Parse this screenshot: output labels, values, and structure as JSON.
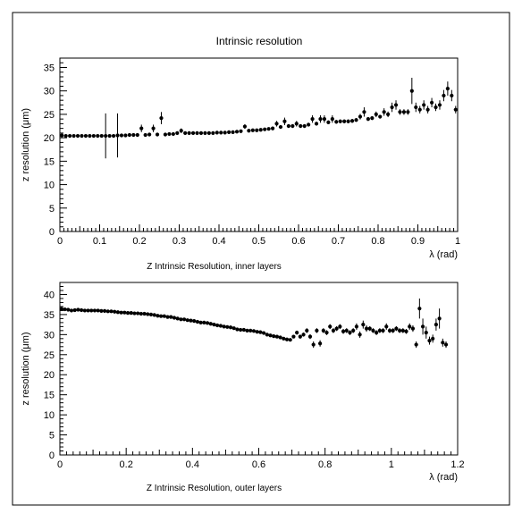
{
  "title": "Intrinsic resolution",
  "chart_data": [
    {
      "type": "scatter",
      "caption": "Z Intrinsic Resolution, inner layers",
      "xlabel": "λ (rad)",
      "ylabel": "z resolution (μm)",
      "xlim": [
        0,
        1
      ],
      "ylim": [
        0,
        37
      ],
      "xticks": [
        0,
        0.1,
        0.2,
        0.3,
        0.4,
        0.5,
        0.6,
        0.7,
        0.8,
        0.9,
        1
      ],
      "xtick_labels": [
        "0",
        "0.1",
        "0.2",
        "0.3",
        "0.4",
        "0.5",
        "0.6",
        "0.7",
        "0.8",
        "0.9",
        "1"
      ],
      "yticks": [
        0,
        5,
        10,
        15,
        20,
        25,
        30,
        35
      ],
      "ytick_labels": [
        "0",
        "5",
        "10",
        "15",
        "20",
        "25",
        "30",
        "35"
      ],
      "grid": false,
      "points": [
        [
          0.005,
          20.5,
          0.3
        ],
        [
          0.015,
          20.4,
          0.3
        ],
        [
          0.025,
          20.4,
          0.3
        ],
        [
          0.035,
          20.4,
          0.3
        ],
        [
          0.045,
          20.4,
          0.3
        ],
        [
          0.055,
          20.4,
          0.3
        ],
        [
          0.065,
          20.4,
          0.3
        ],
        [
          0.075,
          20.4,
          0.3
        ],
        [
          0.085,
          20.4,
          0.3
        ],
        [
          0.095,
          20.4,
          0.3
        ],
        [
          0.105,
          20.4,
          0.3
        ],
        [
          0.115,
          20.4,
          4.8
        ],
        [
          0.125,
          20.4,
          0.3
        ],
        [
          0.135,
          20.4,
          0.3
        ],
        [
          0.145,
          20.5,
          4.7
        ],
        [
          0.155,
          20.5,
          0.3
        ],
        [
          0.165,
          20.5,
          0.3
        ],
        [
          0.175,
          20.6,
          0.3
        ],
        [
          0.185,
          20.6,
          0.3
        ],
        [
          0.195,
          20.6,
          0.3
        ],
        [
          0.205,
          22.0,
          0.8
        ],
        [
          0.215,
          20.6,
          0.3
        ],
        [
          0.225,
          20.7,
          0.3
        ],
        [
          0.235,
          22.0,
          0.8
        ],
        [
          0.245,
          20.7,
          0.3
        ],
        [
          0.255,
          24.2,
          1.3
        ],
        [
          0.265,
          20.7,
          0.3
        ],
        [
          0.275,
          20.8,
          0.3
        ],
        [
          0.285,
          20.8,
          0.3
        ],
        [
          0.295,
          21.0,
          0.3
        ],
        [
          0.305,
          21.5,
          0.5
        ],
        [
          0.315,
          21.0,
          0.3
        ],
        [
          0.325,
          21.0,
          0.3
        ],
        [
          0.335,
          21.0,
          0.3
        ],
        [
          0.345,
          21.0,
          0.3
        ],
        [
          0.355,
          21.0,
          0.3
        ],
        [
          0.365,
          21.0,
          0.3
        ],
        [
          0.375,
          21.0,
          0.3
        ],
        [
          0.385,
          21.0,
          0.3
        ],
        [
          0.395,
          21.1,
          0.3
        ],
        [
          0.405,
          21.1,
          0.3
        ],
        [
          0.415,
          21.1,
          0.3
        ],
        [
          0.425,
          21.2,
          0.3
        ],
        [
          0.435,
          21.2,
          0.3
        ],
        [
          0.445,
          21.3,
          0.3
        ],
        [
          0.455,
          21.4,
          0.3
        ],
        [
          0.465,
          22.4,
          0.5
        ],
        [
          0.475,
          21.5,
          0.3
        ],
        [
          0.485,
          21.6,
          0.3
        ],
        [
          0.495,
          21.6,
          0.3
        ],
        [
          0.505,
          21.7,
          0.3
        ],
        [
          0.515,
          21.8,
          0.3
        ],
        [
          0.525,
          21.9,
          0.3
        ],
        [
          0.535,
          22.0,
          0.4
        ],
        [
          0.545,
          23.0,
          0.6
        ],
        [
          0.555,
          22.3,
          0.4
        ],
        [
          0.565,
          23.5,
          0.8
        ],
        [
          0.575,
          22.5,
          0.4
        ],
        [
          0.585,
          22.5,
          0.4
        ],
        [
          0.595,
          23.0,
          0.6
        ],
        [
          0.605,
          22.5,
          0.4
        ],
        [
          0.615,
          22.5,
          0.4
        ],
        [
          0.625,
          22.8,
          0.4
        ],
        [
          0.635,
          24.0,
          0.8
        ],
        [
          0.645,
          23.0,
          0.4
        ],
        [
          0.655,
          24.0,
          0.8
        ],
        [
          0.665,
          24.0,
          0.8
        ],
        [
          0.675,
          23.3,
          0.4
        ],
        [
          0.685,
          24.0,
          0.8
        ],
        [
          0.695,
          23.4,
          0.4
        ],
        [
          0.705,
          23.5,
          0.4
        ],
        [
          0.715,
          23.5,
          0.4
        ],
        [
          0.725,
          23.5,
          0.4
        ],
        [
          0.735,
          23.6,
          0.4
        ],
        [
          0.745,
          23.8,
          0.4
        ],
        [
          0.755,
          24.5,
          0.6
        ],
        [
          0.765,
          25.5,
          1.0
        ],
        [
          0.775,
          24.0,
          0.4
        ],
        [
          0.785,
          24.2,
          0.4
        ],
        [
          0.795,
          25.0,
          0.6
        ],
        [
          0.805,
          24.5,
          0.4
        ],
        [
          0.815,
          25.5,
          0.8
        ],
        [
          0.825,
          25.0,
          0.6
        ],
        [
          0.835,
          26.5,
          1.0
        ],
        [
          0.845,
          27.0,
          1.0
        ],
        [
          0.855,
          25.5,
          0.6
        ],
        [
          0.865,
          25.5,
          0.6
        ],
        [
          0.875,
          25.5,
          0.6
        ],
        [
          0.885,
          30.0,
          2.8
        ],
        [
          0.895,
          26.5,
          1.0
        ],
        [
          0.905,
          26.0,
          0.8
        ],
        [
          0.915,
          27.0,
          1.0
        ],
        [
          0.925,
          26.0,
          0.8
        ],
        [
          0.935,
          27.5,
          1.0
        ],
        [
          0.945,
          26.5,
          0.8
        ],
        [
          0.955,
          27.0,
          1.0
        ],
        [
          0.965,
          29.0,
          1.2
        ],
        [
          0.975,
          30.5,
          1.5
        ],
        [
          0.985,
          29.0,
          1.2
        ],
        [
          0.995,
          26.0,
          0.8
        ]
      ]
    },
    {
      "type": "scatter",
      "caption": "Z Intrinsic Resolution, outer layers",
      "xlabel": "λ (rad)",
      "ylabel": "z resolution (μm)",
      "xlim": [
        0,
        1.2
      ],
      "ylim": [
        0,
        43
      ],
      "xticks": [
        0,
        0.2,
        0.4,
        0.6,
        0.8,
        1,
        1.2
      ],
      "xtick_labels": [
        "0",
        "0.2",
        "0.4",
        "0.6",
        "0.8",
        "1",
        "1.2"
      ],
      "yticks": [
        0,
        5,
        10,
        15,
        20,
        25,
        30,
        35,
        40
      ],
      "ytick_labels": [
        "0",
        "5",
        "10",
        "15",
        "20",
        "25",
        "30",
        "35",
        "40"
      ],
      "grid": false,
      "points": [
        [
          0.005,
          36.4,
          0.3
        ],
        [
          0.015,
          36.3,
          0.3
        ],
        [
          0.025,
          36.2,
          0.3
        ],
        [
          0.035,
          36.0,
          0.3
        ],
        [
          0.045,
          36.1,
          0.3
        ],
        [
          0.055,
          36.2,
          0.3
        ],
        [
          0.065,
          36.1,
          0.3
        ],
        [
          0.075,
          36.0,
          0.3
        ],
        [
          0.085,
          36.0,
          0.3
        ],
        [
          0.095,
          36.0,
          0.3
        ],
        [
          0.105,
          36.0,
          0.3
        ],
        [
          0.115,
          36.0,
          0.3
        ],
        [
          0.125,
          35.9,
          0.3
        ],
        [
          0.135,
          35.9,
          0.3
        ],
        [
          0.145,
          35.8,
          0.3
        ],
        [
          0.155,
          35.8,
          0.3
        ],
        [
          0.165,
          35.7,
          0.3
        ],
        [
          0.175,
          35.6,
          0.3
        ],
        [
          0.185,
          35.5,
          0.3
        ],
        [
          0.195,
          35.5,
          0.3
        ],
        [
          0.205,
          35.4,
          0.3
        ],
        [
          0.215,
          35.4,
          0.3
        ],
        [
          0.225,
          35.3,
          0.3
        ],
        [
          0.235,
          35.3,
          0.3
        ],
        [
          0.245,
          35.2,
          0.3
        ],
        [
          0.255,
          35.2,
          0.3
        ],
        [
          0.265,
          35.1,
          0.3
        ],
        [
          0.275,
          35.0,
          0.3
        ],
        [
          0.285,
          34.9,
          0.3
        ],
        [
          0.295,
          34.7,
          0.3
        ],
        [
          0.305,
          34.6,
          0.3
        ],
        [
          0.315,
          34.6,
          0.3
        ],
        [
          0.325,
          34.4,
          0.3
        ],
        [
          0.335,
          34.4,
          0.3
        ],
        [
          0.345,
          34.2,
          0.3
        ],
        [
          0.355,
          34.0,
          0.3
        ],
        [
          0.365,
          33.8,
          0.3
        ],
        [
          0.375,
          33.8,
          0.3
        ],
        [
          0.385,
          33.6,
          0.3
        ],
        [
          0.395,
          33.5,
          0.3
        ],
        [
          0.405,
          33.4,
          0.3
        ],
        [
          0.415,
          33.2,
          0.3
        ],
        [
          0.425,
          33.0,
          0.3
        ],
        [
          0.435,
          33.0,
          0.3
        ],
        [
          0.445,
          32.9,
          0.3
        ],
        [
          0.455,
          32.7,
          0.3
        ],
        [
          0.465,
          32.5,
          0.3
        ],
        [
          0.475,
          32.3,
          0.3
        ],
        [
          0.485,
          32.2,
          0.3
        ],
        [
          0.495,
          32.0,
          0.3
        ],
        [
          0.505,
          31.9,
          0.3
        ],
        [
          0.515,
          31.8,
          0.3
        ],
        [
          0.525,
          31.6,
          0.3
        ],
        [
          0.535,
          31.3,
          0.3
        ],
        [
          0.545,
          31.2,
          0.3
        ],
        [
          0.555,
          31.2,
          0.3
        ],
        [
          0.565,
          31.0,
          0.3
        ],
        [
          0.575,
          31.0,
          0.3
        ],
        [
          0.585,
          30.9,
          0.3
        ],
        [
          0.595,
          30.7,
          0.3
        ],
        [
          0.605,
          30.6,
          0.3
        ],
        [
          0.615,
          30.4,
          0.3
        ],
        [
          0.625,
          30.0,
          0.3
        ],
        [
          0.635,
          29.8,
          0.3
        ],
        [
          0.645,
          29.6,
          0.3
        ],
        [
          0.655,
          29.5,
          0.3
        ],
        [
          0.665,
          29.3,
          0.3
        ],
        [
          0.675,
          29.0,
          0.3
        ],
        [
          0.685,
          28.8,
          0.3
        ],
        [
          0.695,
          28.7,
          0.3
        ],
        [
          0.705,
          29.5,
          0.4
        ],
        [
          0.715,
          30.5,
          0.5
        ],
        [
          0.725,
          29.5,
          0.5
        ],
        [
          0.735,
          30.0,
          0.5
        ],
        [
          0.745,
          31.0,
          0.6
        ],
        [
          0.755,
          29.5,
          0.6
        ],
        [
          0.765,
          27.5,
          0.8
        ],
        [
          0.775,
          31.0,
          0.6
        ],
        [
          0.785,
          27.8,
          0.8
        ],
        [
          0.795,
          31.0,
          0.6
        ],
        [
          0.805,
          30.5,
          0.6
        ],
        [
          0.815,
          32.0,
          0.6
        ],
        [
          0.825,
          31.0,
          0.6
        ],
        [
          0.835,
          31.5,
          0.6
        ],
        [
          0.845,
          32.0,
          0.6
        ],
        [
          0.855,
          30.8,
          0.6
        ],
        [
          0.865,
          31.0,
          0.6
        ],
        [
          0.875,
          30.5,
          0.6
        ],
        [
          0.885,
          31.0,
          0.6
        ],
        [
          0.895,
          32.0,
          0.8
        ],
        [
          0.905,
          30.0,
          0.8
        ],
        [
          0.915,
          32.5,
          1.0
        ],
        [
          0.925,
          31.5,
          0.8
        ],
        [
          0.935,
          31.5,
          0.6
        ],
        [
          0.945,
          31.0,
          0.6
        ],
        [
          0.955,
          30.5,
          0.6
        ],
        [
          0.965,
          31.0,
          0.6
        ],
        [
          0.975,
          31.0,
          0.6
        ],
        [
          0.985,
          32.0,
          0.8
        ],
        [
          0.995,
          31.0,
          0.6
        ],
        [
          1.005,
          31.0,
          0.6
        ],
        [
          1.015,
          31.5,
          0.6
        ],
        [
          1.025,
          31.0,
          0.6
        ],
        [
          1.035,
          31.0,
          0.6
        ],
        [
          1.045,
          30.8,
          0.6
        ],
        [
          1.055,
          32.0,
          0.8
        ],
        [
          1.065,
          31.5,
          0.8
        ],
        [
          1.075,
          27.5,
          0.8
        ],
        [
          1.085,
          36.5,
          2.5
        ],
        [
          1.095,
          32.0,
          2.0
        ],
        [
          1.105,
          30.5,
          1.5
        ],
        [
          1.115,
          28.5,
          1.0
        ],
        [
          1.125,
          29.0,
          1.0
        ],
        [
          1.135,
          32.5,
          1.5
        ],
        [
          1.145,
          34.0,
          2.5
        ],
        [
          1.155,
          28.0,
          1.0
        ],
        [
          1.165,
          27.5,
          0.8
        ]
      ]
    }
  ]
}
